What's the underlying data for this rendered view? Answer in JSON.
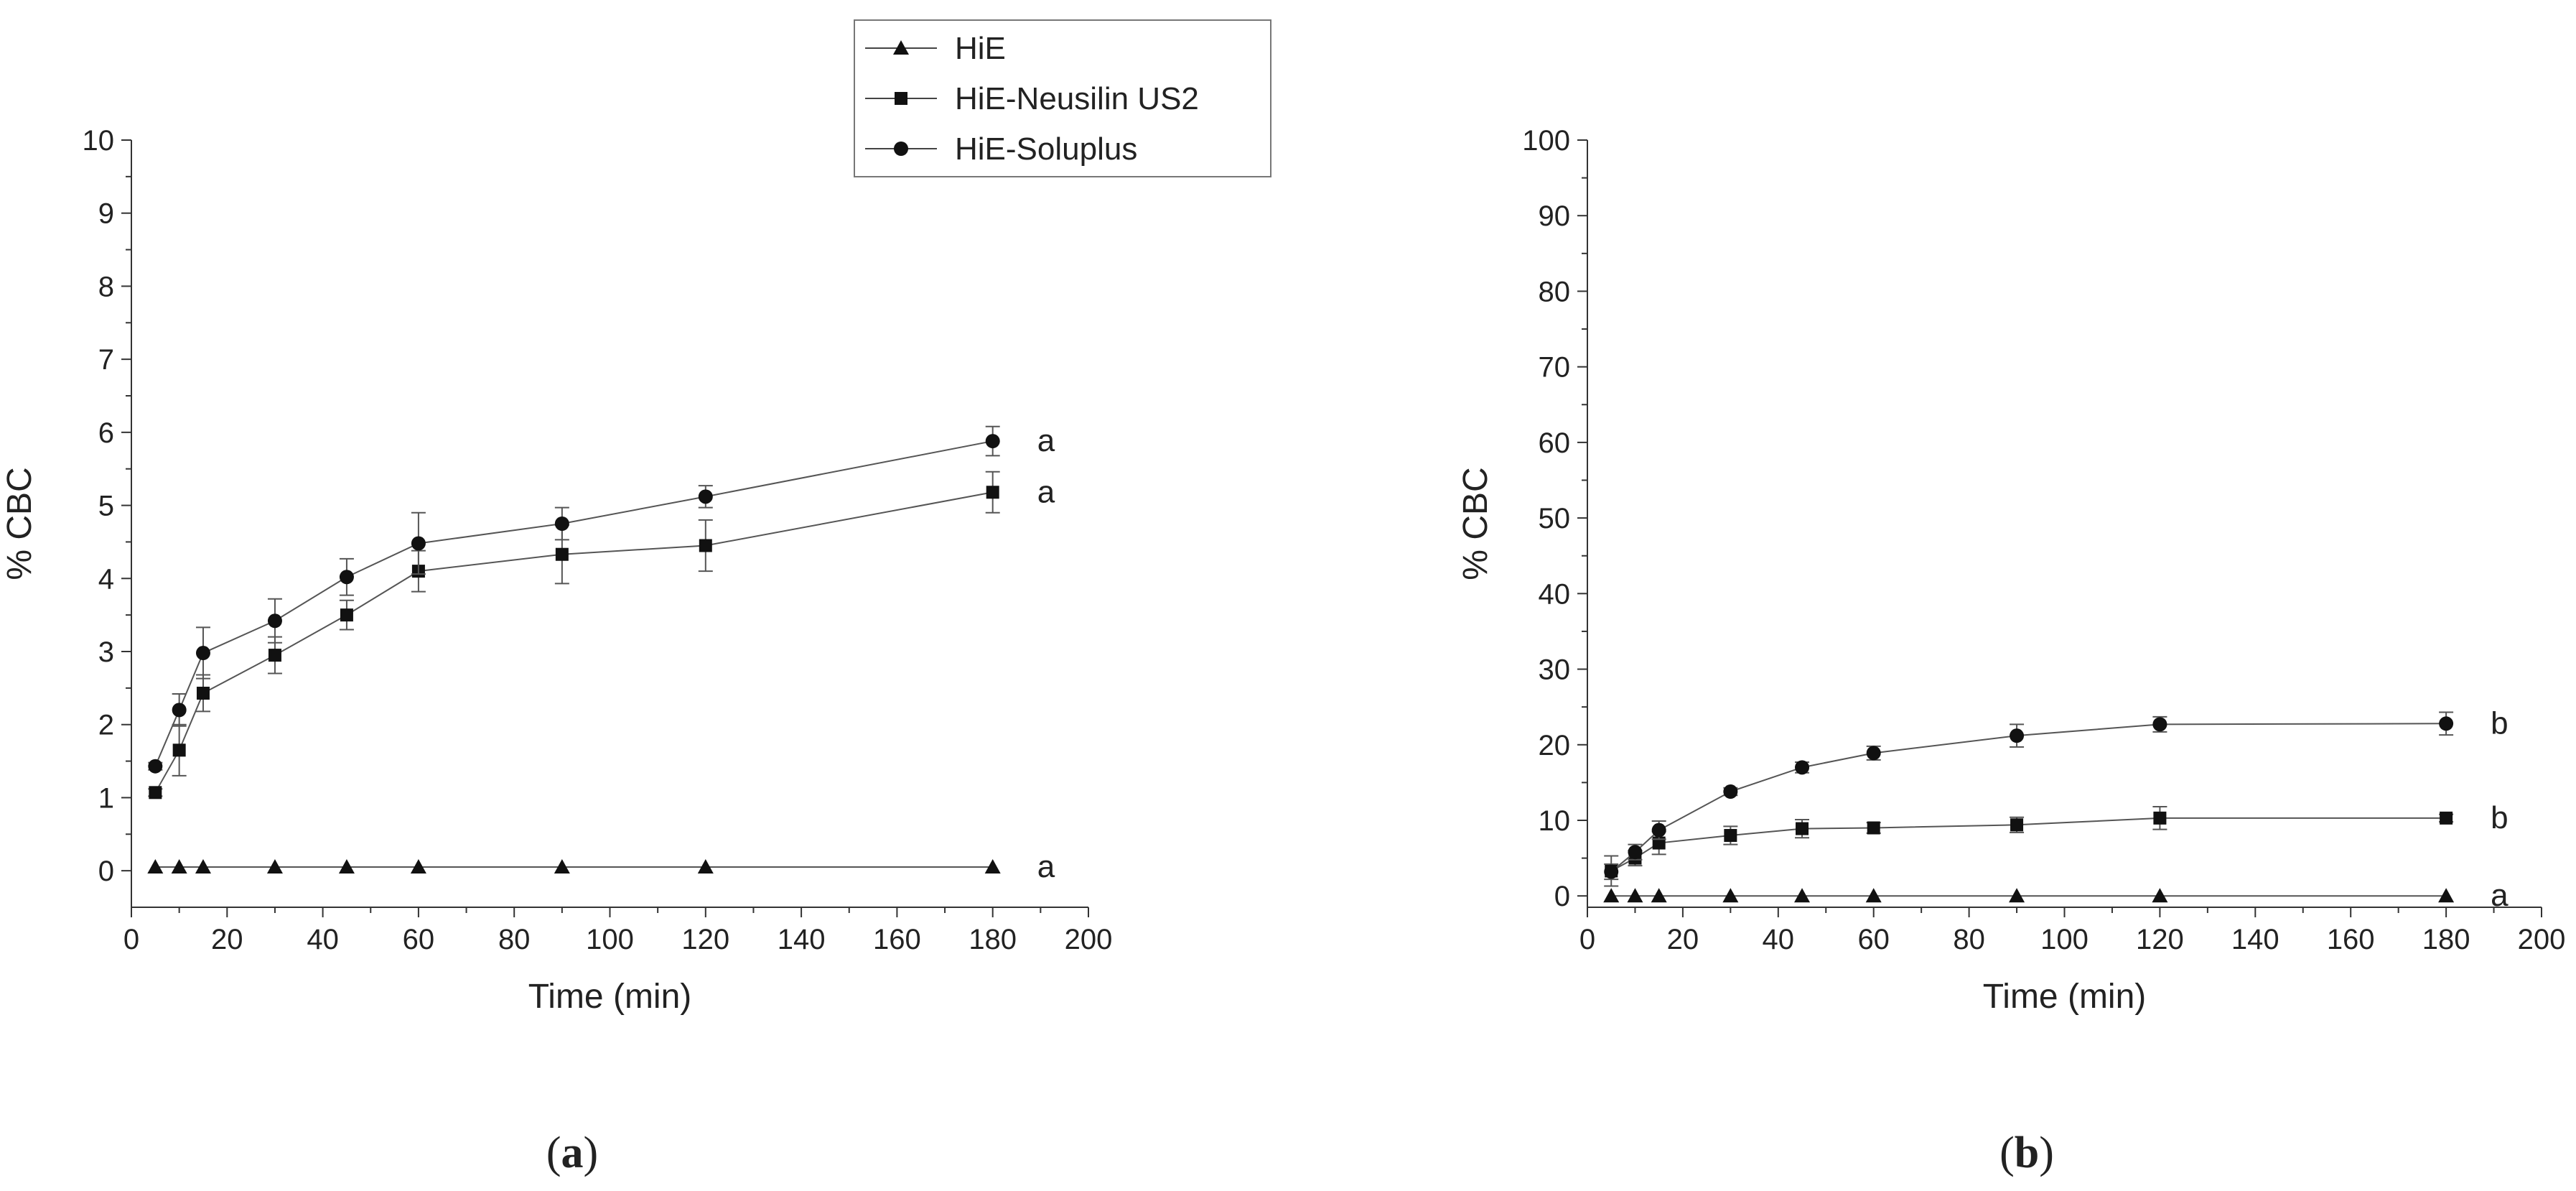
{
  "legend": [
    {
      "label": "HiE",
      "marker": "triangle"
    },
    {
      "label": "HiE-Neusilin US2",
      "marker": "square"
    },
    {
      "label": "HiE-Soluplus",
      "marker": "circle"
    }
  ],
  "captions": {
    "a": {
      "open": "(",
      "letter": "a",
      "close": ")"
    },
    "b": {
      "open": "(",
      "letter": "b",
      "close": ")"
    }
  },
  "chart_data": [
    {
      "id": "a",
      "type": "line",
      "xlabel": "Time (min)",
      "ylabel": "% CBC",
      "xlim": [
        0,
        200
      ],
      "ylim": [
        -0.5,
        10
      ],
      "xticks": [
        0,
        20,
        40,
        60,
        80,
        100,
        120,
        140,
        160,
        180,
        200
      ],
      "yticks": [
        0,
        1,
        2,
        3,
        4,
        5,
        6,
        7,
        8,
        9,
        10
      ],
      "x": [
        5,
        10,
        15,
        30,
        45,
        60,
        90,
        120,
        180
      ],
      "series": [
        {
          "name": "HiE",
          "marker": "triangle",
          "values": [
            0.05,
            0.05,
            0.05,
            0.05,
            0.05,
            0.05,
            0.05,
            0.05,
            0.05
          ],
          "errors": [
            0,
            0,
            0,
            0,
            0,
            0,
            0,
            0,
            0
          ],
          "sig": "a"
        },
        {
          "name": "HiE-Neusilin US2",
          "marker": "square",
          "values": [
            1.07,
            1.65,
            2.43,
            2.95,
            3.5,
            4.1,
            4.33,
            4.45,
            5.18
          ],
          "errors": [
            0.05,
            0.35,
            0.25,
            0.25,
            0.2,
            0.28,
            0.4,
            0.35,
            0.28
          ],
          "sig": "a"
        },
        {
          "name": "HiE-Soluplus",
          "marker": "circle",
          "values": [
            1.43,
            2.2,
            2.98,
            3.42,
            4.02,
            4.48,
            4.75,
            5.12,
            5.88
          ],
          "errors": [
            0.05,
            0.22,
            0.35,
            0.3,
            0.25,
            0.42,
            0.22,
            0.15,
            0.2
          ],
          "sig": "a"
        }
      ]
    },
    {
      "id": "b",
      "type": "line",
      "xlabel": "Time (min)",
      "ylabel": "% CBC",
      "xlim": [
        0,
        200
      ],
      "ylim": [
        -1.5,
        100
      ],
      "xticks": [
        0,
        20,
        40,
        60,
        80,
        100,
        120,
        140,
        160,
        180,
        200
      ],
      "yticks": [
        0,
        10,
        20,
        30,
        40,
        50,
        60,
        70,
        80,
        90,
        100
      ],
      "x": [
        5,
        10,
        15,
        30,
        45,
        60,
        90,
        120,
        180
      ],
      "series": [
        {
          "name": "HiE",
          "marker": "triangle",
          "values": [
            0,
            0,
            0,
            0,
            0,
            0,
            0,
            0,
            0
          ],
          "errors": [
            0,
            0,
            0,
            0,
            0,
            0,
            0,
            0,
            0
          ],
          "sig": "a"
        },
        {
          "name": "HiE-Neusilin US2",
          "marker": "square",
          "values": [
            3.3,
            5.0,
            7.0,
            8.0,
            8.9,
            9.0,
            9.4,
            10.3,
            10.3
          ],
          "errors": [
            2.0,
            1.0,
            1.5,
            1.2,
            1.2,
            0.7,
            1.0,
            1.5,
            0.5
          ],
          "sig": "b"
        },
        {
          "name": "HiE-Soluplus",
          "marker": "circle",
          "values": [
            3.2,
            5.8,
            8.7,
            13.8,
            17.0,
            18.9,
            21.2,
            22.7,
            22.8
          ],
          "errors": [
            1.0,
            1.0,
            1.2,
            0.5,
            0.7,
            0.9,
            1.5,
            1.0,
            1.5
          ],
          "sig": "b"
        }
      ]
    }
  ]
}
